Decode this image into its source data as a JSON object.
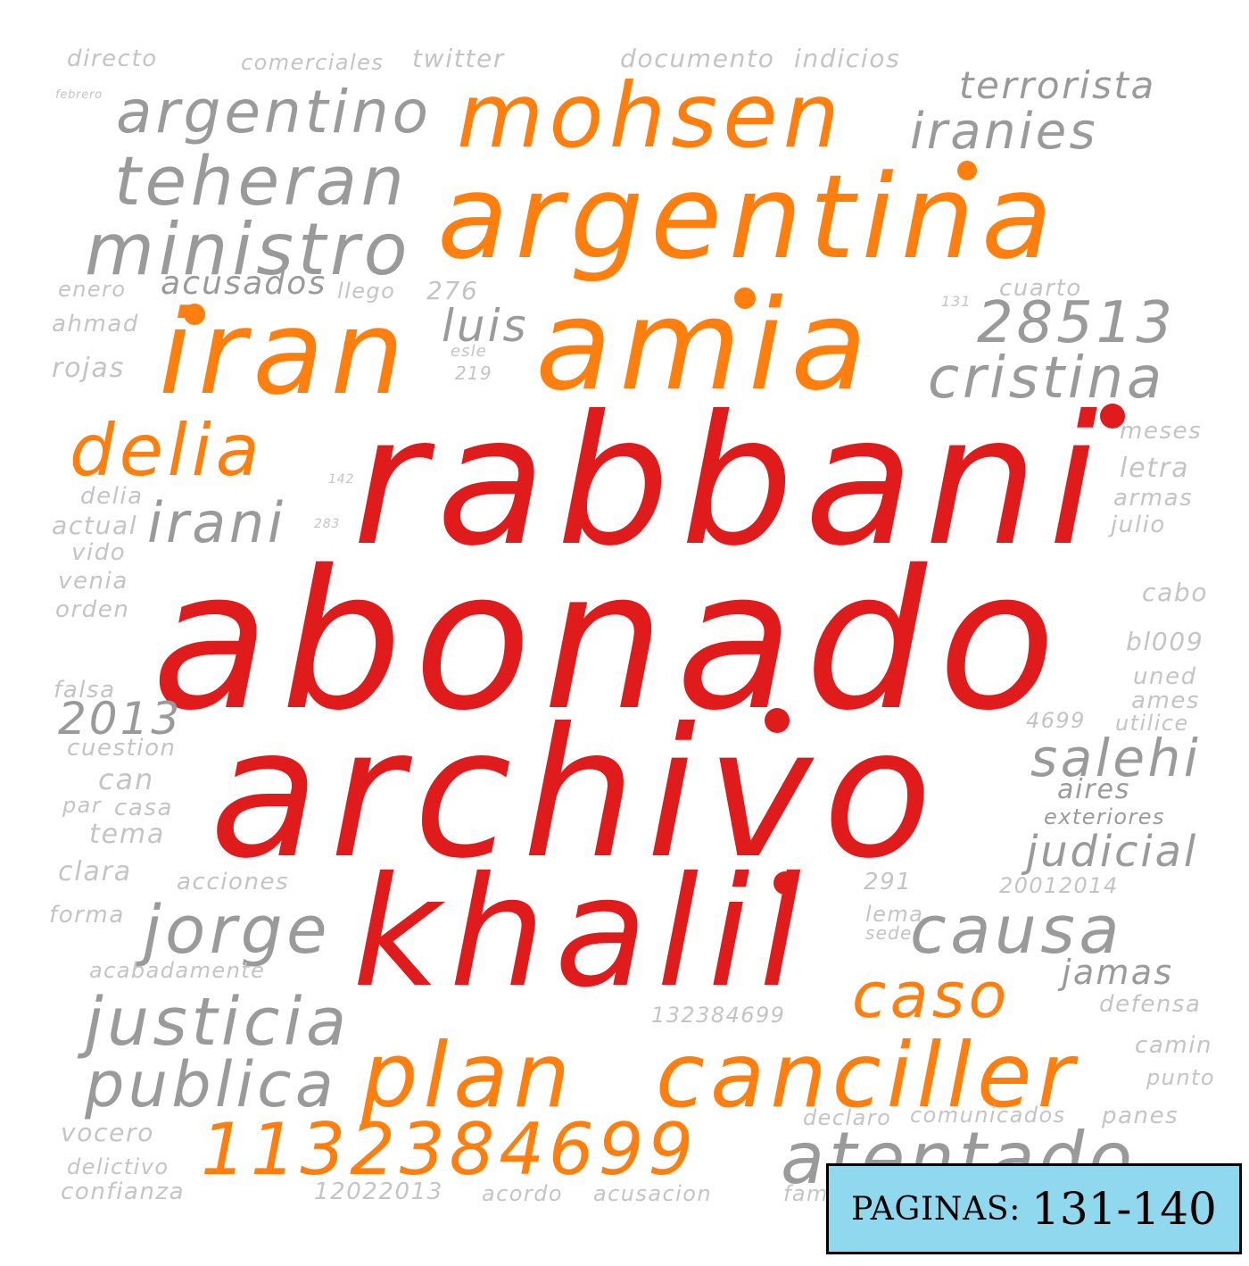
{
  "colors": {
    "primary": "#e01b1b",
    "secondary": "#ff7f0e",
    "tertiary": "#9a9a9a",
    "faint": "#c4c4c4"
  },
  "words": {
    "rabbani": "rabbani",
    "abonado": "abonado",
    "archivo": "archivo",
    "khalil": "khalil",
    "mohsen": "mohsen",
    "argentina": "argentina",
    "iran": "iran",
    "amia": "amia",
    "delia_large": "delia",
    "caso": "caso",
    "plan": "plan",
    "canciller": "canciller",
    "number_1132384699": "1132384699",
    "argentino": "argentino",
    "terrorista": "terrorista",
    "iranies": "iranies",
    "teheran": "teheran",
    "ministro": "ministro",
    "acusados": "acusados",
    "luis": "luis",
    "number_28513": "28513",
    "cristina": "cristina",
    "irani": "irani",
    "number_2013": "2013",
    "salehi": "salehi",
    "judicial": "judicial",
    "aires": "aires",
    "exteriores": "exteriores",
    "causa": "causa",
    "jorge": "jorge",
    "jamas": "jamas",
    "justicia": "justicia",
    "publica": "publica",
    "atentado": "atentado",
    "directo": "directo",
    "comerciales": "comerciales",
    "twitter": "twitter",
    "documento": "documento",
    "indicios": "indicios",
    "enero": "enero",
    "llego": "llego",
    "ahmad": "ahmad",
    "rojas": "rojas",
    "cuarto": "cuarto",
    "meses": "meses",
    "letra": "letra",
    "armas": "armas",
    "julio": "julio",
    "cabo": "cabo",
    "bl009": "bl009",
    "uned": "uned",
    "ames": "ames",
    "utilice": "utilice",
    "number_4699": "4699",
    "delia_small": "delia",
    "actual": "actual",
    "vido": "vido",
    "venia": "venia",
    "orden": "orden",
    "falsa": "falsa",
    "cuestion": "cuestion",
    "can": "can",
    "par": "par",
    "casa": "casa",
    "tema": "tema",
    "clara": "clara",
    "acciones": "acciones",
    "forma": "forma",
    "acabadamente": "acabadamente",
    "number_291": "291",
    "number_20012014": "20012014",
    "lema": "lema",
    "sede": "sede",
    "number_132384699": "132384699",
    "defensa": "defensa",
    "camin": "camin",
    "punto": "punto",
    "vocero": "vocero",
    "delictivo": "delictivo",
    "confianza": "confianza",
    "number_12022013": "12022013",
    "acordo": "acordo",
    "acusacion": "acusacion",
    "declaro": "declaro",
    "comunicados": "comunicados",
    "panes": "panes",
    "number_276": "276",
    "number_219": "219",
    "esle": "esle",
    "number_142": "142",
    "number_283": "283",
    "number_131": "131",
    "febrero": "febrero",
    "fama": "fama"
  },
  "badge": {
    "label": "PAGINAS:",
    "pages": "131-140",
    "background": "#8fd8ee"
  }
}
